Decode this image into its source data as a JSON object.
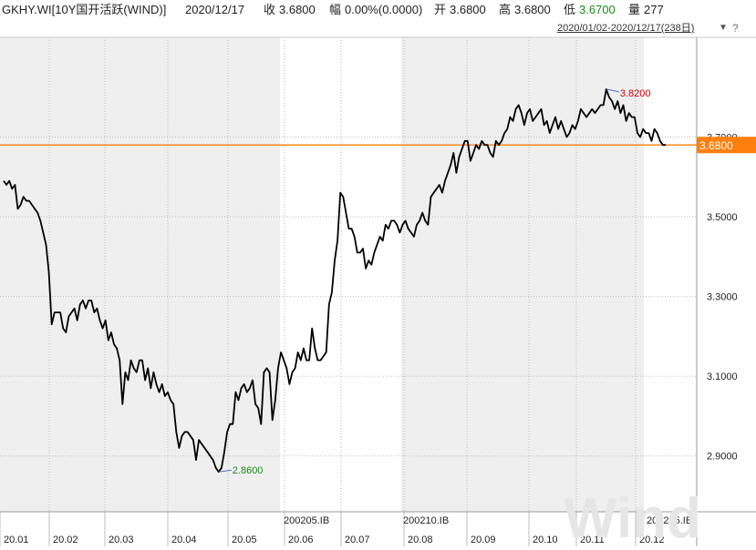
{
  "header": {
    "symbol": "GKHY.WI[10Y国开活跃(WIND)]",
    "date": "2020/12/17",
    "close_label": "收",
    "close_value": "3.6800",
    "change_label": "幅",
    "change_value": "0.00%(0.0000)",
    "open_label": "开",
    "open_value": "3.6800",
    "high_label": "高",
    "high_value": "3.6800",
    "low_label": "低",
    "low_value": "3.6700",
    "volume_label": "量",
    "volume_value": "277"
  },
  "range_text": "2020/01/02-2020/12/17(238日)",
  "watermark": "Wind",
  "colors": {
    "line": "#000000",
    "last_price": "#ff7f0e",
    "max_label": "#cc0000",
    "min_label": "#1a8a1a",
    "shade": "#efefef"
  },
  "chart_data": {
    "type": "line",
    "title": "",
    "xlabel": "",
    "ylabel": "",
    "ylim": [
      2.76,
      3.95
    ],
    "y_ticks": [
      "3.7000",
      "3.5000",
      "3.3000",
      "3.1000",
      "2.9000"
    ],
    "x_ticks": [
      "20.01",
      "20.02",
      "20.03",
      "20.04",
      "20.05",
      "20.06",
      "20.07",
      "20.08",
      "20.09",
      "20.10",
      "20.11",
      "20.12"
    ],
    "contract_labels": [
      "200205.IB",
      "200210.IB",
      "200215.IB"
    ],
    "last_price_label": "3.6800",
    "max_label": "3.8200",
    "min_label": "2.8600",
    "series": [
      {
        "values": [
          3.59,
          3.58,
          3.59,
          3.57,
          3.58,
          3.52,
          3.53,
          3.55,
          3.54,
          3.54,
          3.53,
          3.52,
          3.51,
          3.49,
          3.46,
          3.43,
          3.36,
          3.23,
          3.26,
          3.26,
          3.26,
          3.22,
          3.21,
          3.25,
          3.26,
          3.27,
          3.24,
          3.28,
          3.29,
          3.27,
          3.29,
          3.29,
          3.26,
          3.27,
          3.24,
          3.22,
          3.24,
          3.19,
          3.21,
          3.18,
          3.17,
          3.14,
          3.03,
          3.11,
          3.09,
          3.14,
          3.12,
          3.11,
          3.14,
          3.14,
          3.09,
          3.12,
          3.07,
          3.11,
          3.08,
          3.06,
          3.08,
          3.05,
          3.06,
          3.04,
          3.03,
          2.96,
          2.92,
          2.95,
          2.96,
          2.96,
          2.95,
          2.94,
          2.89,
          2.94,
          2.93,
          2.92,
          2.91,
          2.9,
          2.89,
          2.87,
          2.86,
          2.87,
          2.91,
          2.96,
          2.98,
          2.98,
          3.06,
          3.04,
          3.07,
          3.08,
          3.06,
          3.07,
          3.09,
          3.03,
          3.02,
          2.98,
          3.11,
          3.12,
          3.11,
          2.99,
          3.04,
          3.12,
          3.16,
          3.14,
          3.12,
          3.08,
          3.11,
          3.12,
          3.16,
          3.14,
          3.17,
          3.14,
          3.14,
          3.22,
          3.17,
          3.14,
          3.14,
          3.15,
          3.16,
          3.28,
          3.31,
          3.39,
          3.44,
          3.56,
          3.55,
          3.51,
          3.47,
          3.47,
          3.45,
          3.41,
          3.41,
          3.42,
          3.37,
          3.39,
          3.38,
          3.41,
          3.43,
          3.45,
          3.44,
          3.48,
          3.47,
          3.49,
          3.49,
          3.48,
          3.46,
          3.48,
          3.49,
          3.47,
          3.46,
          3.45,
          3.48,
          3.49,
          3.51,
          3.49,
          3.48,
          3.55,
          3.56,
          3.57,
          3.58,
          3.56,
          3.59,
          3.61,
          3.63,
          3.66,
          3.61,
          3.65,
          3.67,
          3.69,
          3.69,
          3.64,
          3.66,
          3.68,
          3.67,
          3.69,
          3.68,
          3.68,
          3.66,
          3.65,
          3.69,
          3.68,
          3.69,
          3.71,
          3.72,
          3.75,
          3.74,
          3.77,
          3.78,
          3.76,
          3.73,
          3.76,
          3.77,
          3.74,
          3.75,
          3.76,
          3.77,
          3.73,
          3.74,
          3.71,
          3.73,
          3.75,
          3.72,
          3.74,
          3.72,
          3.7,
          3.71,
          3.73,
          3.72,
          3.74,
          3.77,
          3.76,
          3.75,
          3.76,
          3.77,
          3.76,
          3.77,
          3.78,
          3.78,
          3.82,
          3.8,
          3.79,
          3.77,
          3.79,
          3.76,
          3.78,
          3.74,
          3.76,
          3.75,
          3.75,
          3.71,
          3.7,
          3.72,
          3.71,
          3.71,
          3.69,
          3.72,
          3.71,
          3.69,
          3.68,
          3.68
        ]
      }
    ]
  }
}
